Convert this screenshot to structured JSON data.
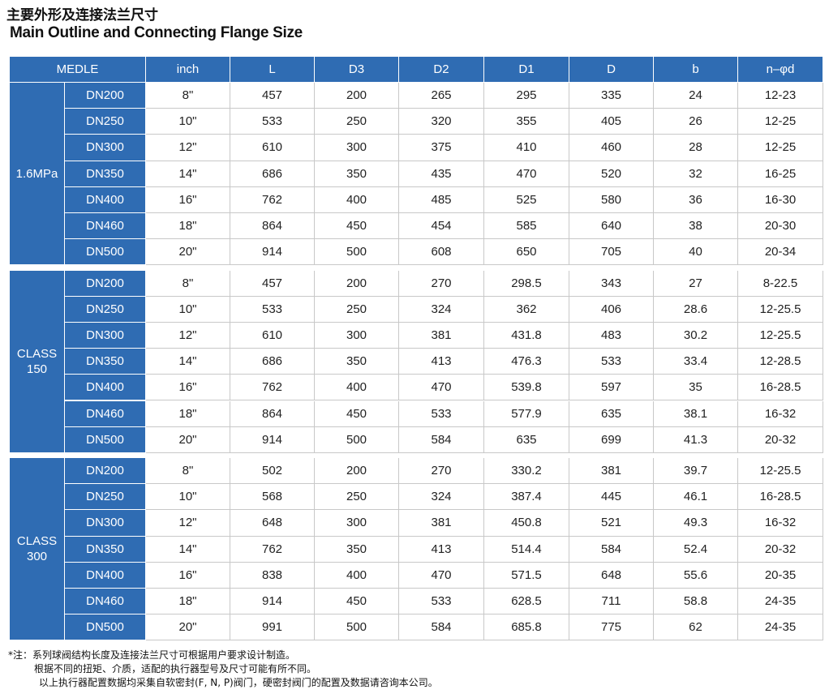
{
  "header": {
    "title": "主要外形及连接法兰尺寸",
    "subtitle": "Main Outline and Connecting Flange Size"
  },
  "table": {
    "columns": [
      "MEDLE",
      "inch",
      "L",
      "D3",
      "D2",
      "D1",
      "D",
      "b",
      "n–φd"
    ],
    "groups": [
      {
        "label": [
          "1.6MPa"
        ],
        "rows": [
          [
            "DN200",
            "8\"",
            "457",
            "200",
            "265",
            "295",
            "335",
            "24",
            "12-23"
          ],
          [
            "DN250",
            "10\"",
            "533",
            "250",
            "320",
            "355",
            "405",
            "26",
            "12-25"
          ],
          [
            "DN300",
            "12\"",
            "610",
            "300",
            "375",
            "410",
            "460",
            "28",
            "12-25"
          ],
          [
            "DN350",
            "14\"",
            "686",
            "350",
            "435",
            "470",
            "520",
            "32",
            "16-25"
          ],
          [
            "DN400",
            "16\"",
            "762",
            "400",
            "485",
            "525",
            "580",
            "36",
            "16-30"
          ],
          [
            "DN460",
            "18\"",
            "864",
            "450",
            "454",
            "585",
            "640",
            "38",
            "20-30"
          ],
          [
            "DN500",
            "20\"",
            "914",
            "500",
            "608",
            "650",
            "705",
            "40",
            "20-34"
          ]
        ]
      },
      {
        "label": [
          "CLASS",
          "150"
        ],
        "rows": [
          [
            "DN200",
            "8\"",
            "457",
            "200",
            "270",
            "298.5",
            "343",
            "27",
            "8-22.5"
          ],
          [
            "DN250",
            "10\"",
            "533",
            "250",
            "324",
            "362",
            "406",
            "28.6",
            "12-25.5"
          ],
          [
            "DN300",
            "12\"",
            "610",
            "300",
            "381",
            "431.8",
            "483",
            "30.2",
            "12-25.5"
          ],
          [
            "DN350",
            "14\"",
            "686",
            "350",
            "413",
            "476.3",
            "533",
            "33.4",
            "12-28.5"
          ],
          [
            "DN400",
            "16\"",
            "762",
            "400",
            "470",
            "539.8",
            "597",
            "35",
            "16-28.5"
          ],
          [
            "DN460",
            "18\"",
            "864",
            "450",
            "533",
            "577.9",
            "635",
            "38.1",
            "16-32"
          ],
          [
            "DN500",
            "20\"",
            "914",
            "500",
            "584",
            "635",
            "699",
            "41.3",
            "20-32"
          ]
        ]
      },
      {
        "label": [
          "CLASS",
          "300"
        ],
        "rows": [
          [
            "DN200",
            "8\"",
            "502",
            "200",
            "270",
            "330.2",
            "381",
            "39.7",
            "12-25.5"
          ],
          [
            "DN250",
            "10\"",
            "568",
            "250",
            "324",
            "387.4",
            "445",
            "46.1",
            "16-28.5"
          ],
          [
            "DN300",
            "12\"",
            "648",
            "300",
            "381",
            "450.8",
            "521",
            "49.3",
            "16-32"
          ],
          [
            "DN350",
            "14\"",
            "762",
            "350",
            "413",
            "514.4",
            "584",
            "52.4",
            "20-32"
          ],
          [
            "DN400",
            "16\"",
            "838",
            "400",
            "470",
            "571.5",
            "648",
            "55.6",
            "20-35"
          ],
          [
            "DN460",
            "18\"",
            "914",
            "450",
            "533",
            "628.5",
            "711",
            "58.8",
            "24-35"
          ],
          [
            "DN500",
            "20\"",
            "991",
            "500",
            "584",
            "685.8",
            "775",
            "62",
            "24-35"
          ]
        ]
      }
    ]
  },
  "notes": [
    "*注：系列球阀结构长度及连接法兰尺寸可根据用户要求设计制造。",
    "根据不同的扭矩、介质，适配的执行器型号及尺寸可能有所不同。",
    "以上执行器配置数据均采集自软密封(F, N, P)阀门，硬密封阀门的配置及数据请咨询本公司。"
  ]
}
